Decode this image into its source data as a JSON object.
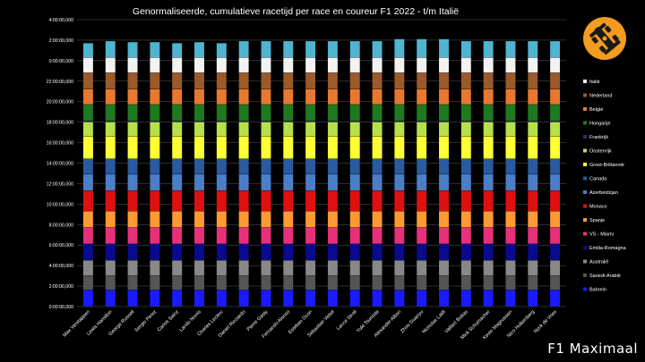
{
  "chart_data": {
    "type": "bar",
    "stacked": true,
    "title": "Genormaliseerde, cumulatieve racetijd per race en coureur F1 2022 - t/m Italië",
    "xlabel": "",
    "ylabel": "",
    "ylim": [
      "0:00:00,000",
      "4:00:00,000 (+24h)"
    ],
    "grid": true,
    "legend_position": "right",
    "yticks": [
      "0:00:00,000",
      "2:00:00,000",
      "4:00:00,000",
      "6:00:00,000",
      "8:00:00,000",
      "10:00:00,000",
      "12:00:00,000",
      "14:00:00,000",
      "16:00:00,000",
      "18:00:00,000",
      "20:00:00,000",
      "22:00:00,000",
      "0:00:00,000",
      "2:00:00,000",
      "4:00:00,000"
    ],
    "categories": [
      "Max Verstappen",
      "Lewis Hamilton",
      "George Russell",
      "Sergio Perez",
      "Carlos Sainz",
      "Lando Norris",
      "Charles Leclerc",
      "Daniel Ricciardo",
      "Pierre Gasly",
      "Fernando Alonso",
      "Esteban Ocon",
      "Sebastian Vettel",
      "Lance Stroll",
      "Yuki Tsunoda",
      "Alexander Albon",
      "Zhou Guanyu",
      "Nicholas Latifi",
      "Valtteri Bottas",
      "Mick Schumacher",
      "Kevin Magnussen",
      "Nico Hulkenberg",
      "Nyck de Vries"
    ],
    "series": [
      {
        "name": "Bahrein",
        "color": "#1a1aff",
        "values": [
          1.6,
          1.6,
          1.6,
          1.6,
          1.6,
          1.6,
          1.6,
          1.6,
          1.6,
          1.6,
          1.6,
          1.6,
          1.6,
          1.6,
          1.6,
          1.6,
          1.6,
          1.6,
          1.6,
          1.6,
          1.6,
          1.6
        ]
      },
      {
        "name": "Saoedi-Arabië",
        "color": "#555555",
        "values": [
          1.4,
          1.4,
          1.4,
          1.4,
          1.4,
          1.4,
          1.4,
          1.4,
          1.4,
          1.4,
          1.4,
          1.4,
          1.4,
          1.4,
          1.4,
          1.4,
          1.4,
          1.4,
          1.4,
          1.4,
          1.4,
          1.4
        ]
      },
      {
        "name": "Australië",
        "color": "#888888",
        "values": [
          1.5,
          1.5,
          1.5,
          1.5,
          1.5,
          1.5,
          1.5,
          1.5,
          1.5,
          1.5,
          1.5,
          1.5,
          1.5,
          1.5,
          1.5,
          1.5,
          1.5,
          1.5,
          1.5,
          1.5,
          1.5,
          1.5
        ]
      },
      {
        "name": "Emilia-Romagna",
        "color": "#0a0a8f",
        "values": [
          1.6,
          1.6,
          1.6,
          1.6,
          1.6,
          1.6,
          1.6,
          1.6,
          1.6,
          1.6,
          1.6,
          1.6,
          1.6,
          1.6,
          1.6,
          1.6,
          1.6,
          1.6,
          1.6,
          1.6,
          1.6,
          1.6
        ]
      },
      {
        "name": "VS - Miami",
        "color": "#e8307a",
        "values": [
          1.6,
          1.6,
          1.6,
          1.6,
          1.6,
          1.6,
          1.6,
          1.6,
          1.6,
          1.6,
          1.6,
          1.6,
          1.6,
          1.6,
          1.6,
          1.6,
          1.6,
          1.6,
          1.6,
          1.6,
          1.6,
          1.6
        ]
      },
      {
        "name": "Spanje",
        "color": "#ff9933",
        "values": [
          1.6,
          1.6,
          1.6,
          1.6,
          1.6,
          1.6,
          1.6,
          1.6,
          1.6,
          1.6,
          1.6,
          1.6,
          1.6,
          1.6,
          1.6,
          1.6,
          1.6,
          1.6,
          1.6,
          1.6,
          1.6,
          1.6
        ]
      },
      {
        "name": "Monaco",
        "color": "#e01010",
        "values": [
          2.0,
          2.0,
          2.0,
          2.0,
          2.0,
          2.0,
          2.0,
          2.0,
          2.0,
          2.0,
          2.0,
          2.0,
          2.0,
          2.0,
          2.0,
          2.0,
          2.0,
          2.0,
          2.0,
          2.0,
          2.0,
          2.0
        ]
      },
      {
        "name": "Azerbeidzjan",
        "color": "#4a7fc8",
        "values": [
          1.6,
          1.6,
          1.6,
          1.6,
          1.6,
          1.6,
          1.6,
          1.6,
          1.6,
          1.6,
          1.6,
          1.6,
          1.6,
          1.6,
          1.6,
          1.6,
          1.6,
          1.6,
          1.6,
          1.6,
          1.6,
          1.6
        ]
      },
      {
        "name": "Canada",
        "color": "#2a5aa0",
        "values": [
          1.5,
          1.5,
          1.5,
          1.5,
          1.5,
          1.5,
          1.5,
          1.5,
          1.5,
          1.5,
          1.5,
          1.5,
          1.5,
          1.5,
          1.5,
          1.5,
          1.5,
          1.5,
          1.5,
          1.5,
          1.5,
          1.5
        ]
      },
      {
        "name": "Groot-Brittannië",
        "color": "#ffff33",
        "values": [
          2.2,
          2.2,
          2.2,
          2.2,
          2.2,
          2.2,
          2.2,
          2.2,
          2.2,
          2.2,
          2.2,
          2.2,
          2.2,
          2.2,
          2.2,
          2.2,
          2.2,
          2.2,
          2.2,
          2.2,
          2.2,
          2.2
        ]
      },
      {
        "name": "Oostenrijk",
        "color": "#b8e04a",
        "values": [
          1.4,
          1.4,
          1.4,
          1.4,
          1.4,
          1.4,
          1.4,
          1.4,
          1.4,
          1.4,
          1.4,
          1.4,
          1.4,
          1.4,
          1.4,
          1.4,
          1.4,
          1.4,
          1.4,
          1.4,
          1.4,
          1.4
        ]
      },
      {
        "name": "Frankrijk",
        "color": "#2a2a6a",
        "values": [
          0.1,
          0.1,
          0.1,
          0.1,
          0.1,
          0.1,
          0.1,
          0.1,
          0.1,
          0.1,
          0.1,
          0.1,
          0.1,
          0.1,
          0.1,
          0.1,
          0.1,
          0.1,
          0.1,
          0.1,
          0.1,
          0.1
        ]
      },
      {
        "name": "Hongarije",
        "color": "#1e7a1e",
        "values": [
          1.6,
          1.6,
          1.6,
          1.6,
          1.6,
          1.6,
          1.6,
          1.6,
          1.6,
          1.6,
          1.6,
          1.6,
          1.6,
          1.6,
          1.6,
          1.6,
          1.6,
          1.6,
          1.6,
          1.6,
          1.6,
          1.6
        ]
      },
      {
        "name": "België",
        "color": "#e87830",
        "values": [
          1.5,
          1.5,
          1.5,
          1.5,
          1.5,
          1.5,
          1.5,
          1.5,
          1.5,
          1.5,
          1.5,
          1.5,
          1.5,
          1.5,
          1.5,
          1.5,
          1.5,
          1.5,
          1.5,
          1.5,
          1.5,
          1.5
        ]
      },
      {
        "name": "Nederland",
        "color": "#9a5a2a",
        "values": [
          1.6,
          1.6,
          1.6,
          1.6,
          1.6,
          1.6,
          1.6,
          1.6,
          1.6,
          1.6,
          1.6,
          1.6,
          1.6,
          1.6,
          1.6,
          1.6,
          1.6,
          1.6,
          1.6,
          1.6,
          1.6,
          1.6
        ]
      },
      {
        "name": "Italië",
        "color": "#f2f2f2",
        "values": [
          1.5,
          1.5,
          1.5,
          1.5,
          1.5,
          1.5,
          1.5,
          1.5,
          1.5,
          1.5,
          1.5,
          1.5,
          1.5,
          1.5,
          1.5,
          1.5,
          1.5,
          1.5,
          1.5,
          1.5,
          1.5,
          1.5
        ]
      },
      {
        "name": "",
        "color": "#4fb4d0",
        "values": [
          1.4,
          1.6,
          1.5,
          1.5,
          1.4,
          1.5,
          1.4,
          1.6,
          1.6,
          1.6,
          1.6,
          1.6,
          1.6,
          1.6,
          1.8,
          1.8,
          1.8,
          1.6,
          1.6,
          1.6,
          1.6,
          1.6
        ]
      }
    ],
    "legend": [
      "Italië",
      "Nederland",
      "België",
      "Hongarije",
      "Frankrijk",
      "Oostenrijk",
      "Groot-Brittannië",
      "Canada",
      "Azerbeidzjan",
      "Monaco",
      "Spanje",
      "VS - Miami",
      "Emilia-Romagna",
      "Australië",
      "Saoedi-Arabië",
      "Bahrein"
    ]
  },
  "brand": {
    "watermark": "F1 Maximaal",
    "logo_icon": "race-car-icon",
    "logo_color": "#f39c1f"
  }
}
